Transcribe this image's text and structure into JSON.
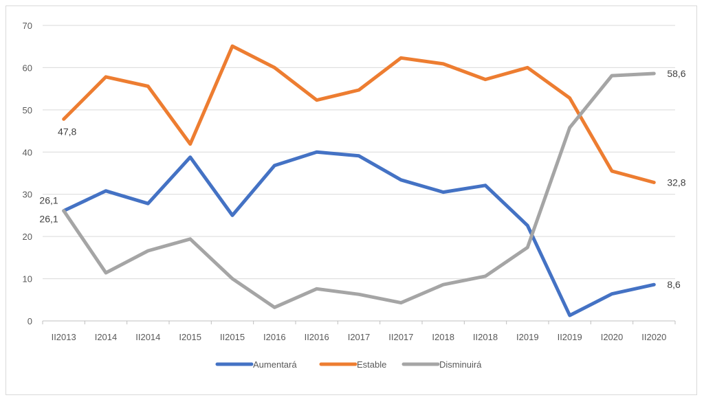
{
  "chart_data": {
    "type": "line",
    "categories": [
      "II2013",
      "I2014",
      "II2014",
      "I2015",
      "II2015",
      "I2016",
      "II2016",
      "I2017",
      "II2017",
      "I2018",
      "II2018",
      "I2019",
      "II2019",
      "I2020",
      "II2020"
    ],
    "ylim": [
      0,
      70
    ],
    "yticks": [
      0,
      10,
      20,
      30,
      40,
      50,
      60,
      70
    ],
    "grid": true,
    "legend_position": "bottom",
    "series": [
      {
        "name": "Aumentará",
        "color": "#4472C4",
        "values": [
          26.1,
          30.8,
          27.8,
          38.8,
          25.0,
          36.8,
          40.0,
          39.1,
          33.4,
          30.5,
          32.1,
          22.6,
          1.3,
          6.4,
          8.6
        ]
      },
      {
        "name": "Estable",
        "color": "#ED7D31",
        "values": [
          47.8,
          57.8,
          55.6,
          41.9,
          65.1,
          60.0,
          52.3,
          54.7,
          62.3,
          60.9,
          57.2,
          60.0,
          52.8,
          35.5,
          32.8
        ]
      },
      {
        "name": "Disminuirá",
        "color": "#A5A5A5",
        "values": [
          26.1,
          11.4,
          16.6,
          19.4,
          10.0,
          3.2,
          7.6,
          6.3,
          4.3,
          8.6,
          10.6,
          17.4,
          45.8,
          58.1,
          58.6
        ]
      }
    ],
    "data_labels": [
      {
        "series": 1,
        "index": 0,
        "text": "47,8"
      },
      {
        "series": 0,
        "index": 0,
        "text": "26,1"
      },
      {
        "series": 2,
        "index": 0,
        "text": "26,1"
      },
      {
        "series": 2,
        "index": 14,
        "text": "58,6"
      },
      {
        "series": 1,
        "index": 14,
        "text": "32,8"
      },
      {
        "series": 0,
        "index": 14,
        "text": "8,6"
      }
    ]
  }
}
